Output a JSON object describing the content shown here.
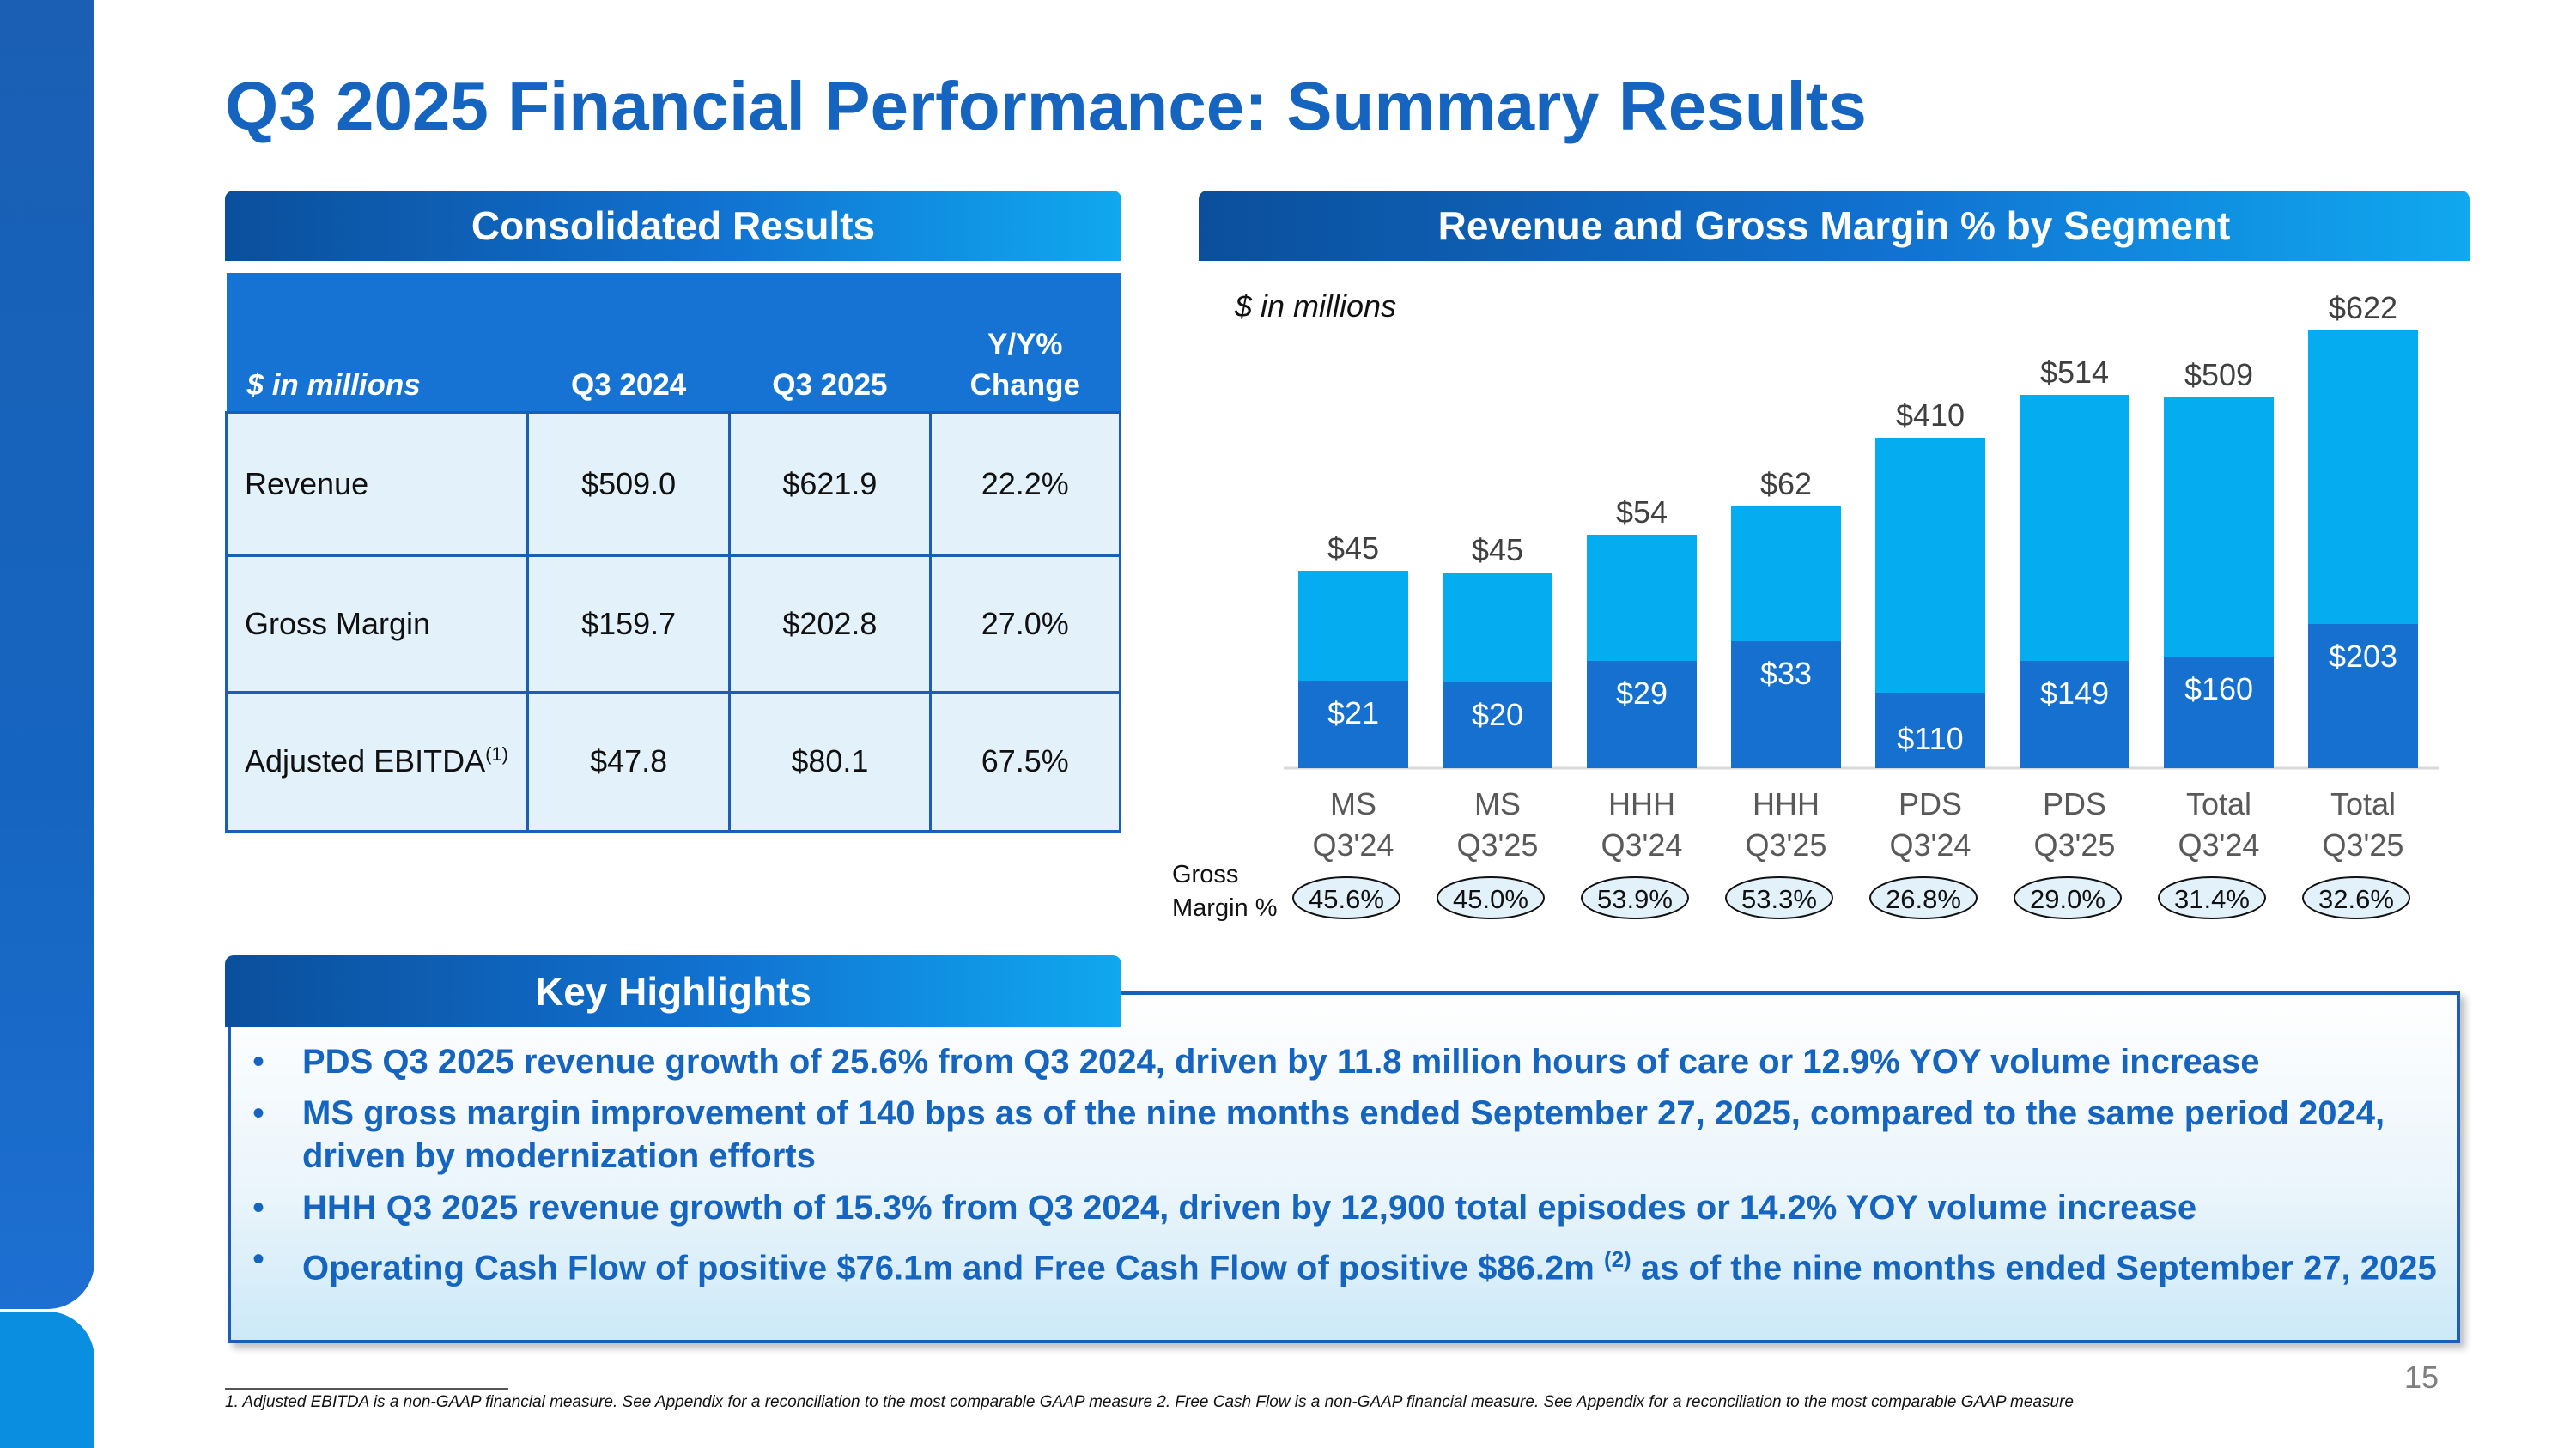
{
  "title": "Q3 2025 Financial Performance: Summary Results",
  "consolidated": {
    "header": "Consolidated Results",
    "columns": [
      "$ in millions",
      "Q3 2024",
      "Q3 2025",
      "Y/Y% Change"
    ],
    "col_change_line1": "Y/Y%",
    "col_change_line2": "Change",
    "rows": [
      {
        "label": "Revenue",
        "sup": "",
        "q3_2024": "$509.0",
        "q3_2025": "$621.9",
        "change": "22.2%"
      },
      {
        "label": "Gross Margin",
        "sup": "",
        "q3_2024": "$159.7",
        "q3_2025": "$202.8",
        "change": "27.0%"
      },
      {
        "label": "Adjusted EBITDA",
        "sup": "(1)",
        "q3_2024": "$47.8",
        "q3_2025": "$80.1",
        "change": "67.5%"
      }
    ]
  },
  "segment": {
    "header": "Revenue and Gross Margin % by Segment",
    "unit": "$ in millions",
    "gm_label_line1": "Gross",
    "gm_label_line2": "Margin %"
  },
  "chart_data": {
    "type": "bar",
    "stacked": true,
    "categories": [
      [
        "MS",
        "Q3'24"
      ],
      [
        "MS",
        "Q3'25"
      ],
      [
        "HHH",
        "Q3'24"
      ],
      [
        "HHH",
        "Q3'25"
      ],
      [
        "PDS",
        "Q3'24"
      ],
      [
        "PDS",
        "Q3'25"
      ],
      [
        "Total",
        "Q3'24"
      ],
      [
        "Total",
        "Q3'25"
      ]
    ],
    "series": [
      {
        "name": "Gross Margin",
        "values": [
          21,
          20,
          29,
          33,
          110,
          149,
          160,
          203
        ],
        "labels": [
          "$21",
          "$20",
          "$29",
          "$33",
          "$110",
          "$149",
          "$160",
          "$203"
        ],
        "color": "#1570cf"
      },
      {
        "name": "Revenue",
        "values": [
          45,
          45,
          54,
          62,
          410,
          514,
          509,
          622
        ],
        "labels": [
          "$45",
          "$45",
          "$54",
          "$62",
          "$410",
          "$514",
          "$509",
          "$622"
        ],
        "color": "#05acef"
      }
    ],
    "gross_margin_pct": [
      "45.6%",
      "45.0%",
      "53.9%",
      "53.3%",
      "26.8%",
      "29.0%",
      "31.4%",
      "32.6%"
    ],
    "display_heights_note": "MS and HHH bars are drawn on a broken (non-linear) scale as in the original",
    "display_scale": [
      230,
      228,
      272,
      305,
      385,
      435,
      432,
      510
    ],
    "display_inner": [
      102,
      100,
      125,
      148,
      88,
      125,
      130,
      168
    ]
  },
  "highlights": {
    "header": "Key Highlights",
    "bullet": "•",
    "items": [
      {
        "text": "PDS Q3 2025 revenue growth of 25.6% from Q3 2024, driven by 11.8 million hours of care or 12.9% YOY volume increase",
        "sup": "",
        "tail": ""
      },
      {
        "text": "MS gross margin improvement of 140 bps as of the nine months ended September 27, 2025, compared to the same period 2024, driven by modernization efforts",
        "sup": "",
        "tail": ""
      },
      {
        "text": "HHH Q3 2025 revenue growth of 15.3% from Q3 2024, driven by 12,900 total episodes or 14.2% YOY volume increase",
        "sup": "",
        "tail": ""
      },
      {
        "text": "Operating Cash Flow of positive $76.1m and Free Cash Flow of positive $86.2m ",
        "sup": "(2)",
        "tail": " as of the nine months ended September 27, 2025"
      }
    ]
  },
  "footnote": "1. Adjusted EBITDA is a non-GAAP financial measure. See Appendix for a reconciliation to the most comparable GAAP measure 2. Free Cash Flow is a non-GAAP financial measure. See Appendix for a reconciliation to the most comparable GAAP measure",
  "page_number": "15",
  "colors": {
    "brand": "#1565c0",
    "bar_dark": "#1570cf",
    "bar_light": "#05acef"
  }
}
